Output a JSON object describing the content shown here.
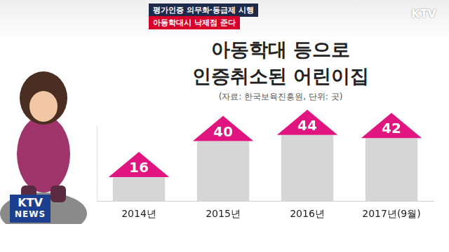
{
  "header": {
    "headline": "평가인증 의무화·등급제 시행",
    "subheadline": "아동학대시 낙제점 준다",
    "logo": "KTV",
    "corner_logo": [
      "KTV",
      "NEWS"
    ]
  },
  "chart_data": {
    "type": "bar",
    "title": [
      "아동학대 등으로",
      "인증취소된 어린이집"
    ],
    "subtitle": "(자료: 한국보육진흥원, 단위: 곳)",
    "categories": [
      "2014년",
      "2015년",
      "2016년",
      "2017년(9월)"
    ],
    "values": [
      16,
      40,
      44,
      42
    ],
    "color": "#d6d6d6",
    "ylim": [
      0,
      50
    ],
    "grid": false,
    "data_labels": true,
    "tick_labels": "x"
  }
}
